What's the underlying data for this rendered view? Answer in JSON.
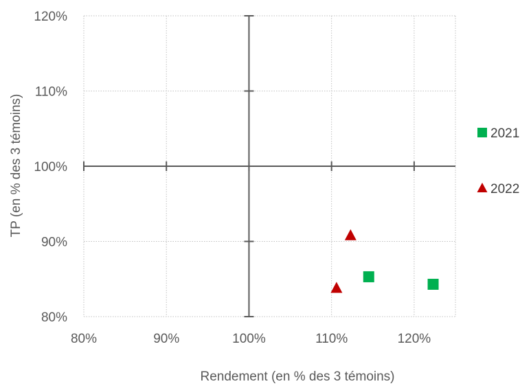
{
  "chart_data": {
    "type": "scatter",
    "xlabel": "Rendement (en % des 3 témoins)",
    "ylabel": "TP (en % des 3 témoins)",
    "xlim": [
      80,
      125
    ],
    "ylim": [
      80,
      120
    ],
    "x_ticks": [
      80,
      90,
      100,
      110,
      120
    ],
    "y_ticks": [
      80,
      90,
      100,
      110,
      120
    ],
    "tick_format": "%",
    "axes_cross_at": {
      "x": 100,
      "y": 100
    },
    "grid": true,
    "legend_position": "right",
    "series": [
      {
        "name": "2021",
        "marker": "square",
        "color": "#00b050",
        "points": [
          [
            114.5,
            85.3
          ],
          [
            122.3,
            84.3
          ]
        ]
      },
      {
        "name": "2022",
        "marker": "triangle",
        "color": "#c00000",
        "points": [
          [
            110.6,
            83.8
          ],
          [
            112.3,
            90.8
          ]
        ]
      }
    ]
  }
}
